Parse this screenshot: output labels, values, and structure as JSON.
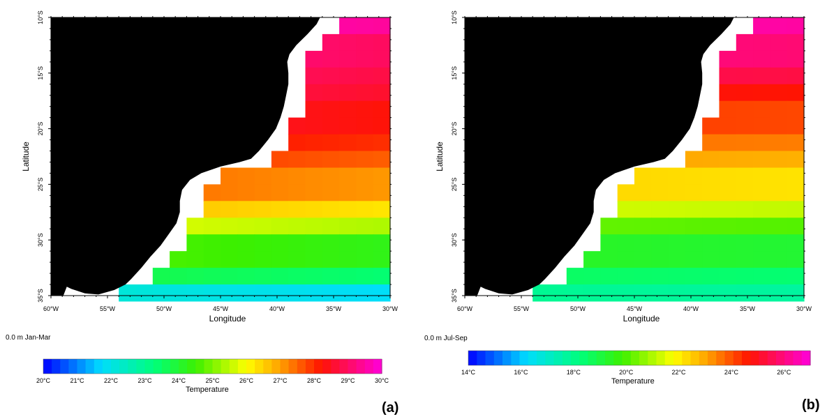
{
  "panels": [
    {
      "id": "a",
      "tag": "(a)",
      "depth_label": "0.0 m Jan-Mar",
      "xlabel": "Longitude",
      "ylabel": "Latitude",
      "lon_ticks": [
        "60°W",
        "55°W",
        "50°W",
        "45°W",
        "40°W",
        "35°W",
        "30°W"
      ],
      "lat_ticks": [
        "10°S",
        "15°S",
        "20°S",
        "25°S",
        "30°S",
        "35°S"
      ],
      "colorbar_title": "Temperature",
      "colorbar_range": [
        20,
        30
      ],
      "colorbar_ticks": [
        "20°C",
        "21°C",
        "22°C",
        "23°C",
        "24°C",
        "25°C",
        "26°C",
        "27°C",
        "28°C",
        "29°C",
        "30°C"
      ],
      "colorbar_tick_values": [
        20,
        21,
        22,
        23,
        24,
        25,
        26,
        27,
        28,
        29,
        30
      ]
    },
    {
      "id": "b",
      "tag": "(b)",
      "depth_label": "0.0 m Jul-Sep",
      "xlabel": "Longitude",
      "ylabel": "Latitude",
      "lon_ticks": [
        "60°W",
        "55°W",
        "50°W",
        "45°W",
        "40°W",
        "35°W",
        "30°W"
      ],
      "lat_ticks": [
        "10°S",
        "15°S",
        "20°S",
        "25°S",
        "30°S",
        "35°S"
      ],
      "colorbar_title": "Temperature",
      "colorbar_range": [
        14,
        27
      ],
      "colorbar_ticks": [
        "14°C",
        "16°C",
        "18°C",
        "20°C",
        "22°C",
        "24°C",
        "26°C"
      ],
      "colorbar_tick_values": [
        14,
        16,
        18,
        20,
        22,
        24,
        26
      ]
    }
  ],
  "chart_data": [
    {
      "type": "heatmap",
      "variable": "Temperature",
      "season": "Jan-Mar",
      "depth": "0.0 m",
      "x_range": [
        -60,
        -30
      ],
      "y_range": [
        -35,
        -10
      ],
      "colorscale_range": [
        20,
        30
      ],
      "colors": {
        "land": "#000000",
        "no_data": "#ffffff"
      },
      "lat_band_temps": [
        {
          "lat": -11,
          "temp": 29.7
        },
        {
          "lat": -13,
          "temp": 29.2
        },
        {
          "lat": -15,
          "temp": 29.0
        },
        {
          "lat": -17,
          "temp": 28.8
        },
        {
          "lat": -19,
          "temp": 28.5
        },
        {
          "lat": -21,
          "temp": 28.2
        },
        {
          "lat": -23,
          "temp": 27.8
        },
        {
          "lat": -25,
          "temp": 27.3
        },
        {
          "lat": -27,
          "temp": 26.5
        },
        {
          "lat": -29,
          "temp": 25.6
        },
        {
          "lat": -31,
          "temp": 24.5
        },
        {
          "lat": -33,
          "temp": 23.6
        },
        {
          "lat": -34.5,
          "temp": 22.0
        }
      ]
    },
    {
      "type": "heatmap",
      "variable": "Temperature",
      "season": "Jul-Sep",
      "depth": "0.0 m",
      "x_range": [
        -60,
        -30
      ],
      "y_range": [
        -35,
        -10
      ],
      "colorscale_range": [
        14,
        27
      ],
      "colors": {
        "land": "#000000",
        "no_data": "#ffffff"
      },
      "lat_band_temps": [
        {
          "lat": -11,
          "temp": 26.5
        },
        {
          "lat": -13,
          "temp": 26.0
        },
        {
          "lat": -15,
          "temp": 25.5
        },
        {
          "lat": -17,
          "temp": 24.8
        },
        {
          "lat": -19,
          "temp": 24.2
        },
        {
          "lat": -21,
          "temp": 23.6
        },
        {
          "lat": -23,
          "temp": 23.0
        },
        {
          "lat": -25,
          "temp": 22.3
        },
        {
          "lat": -27,
          "temp": 21.3
        },
        {
          "lat": -29,
          "temp": 20.2
        },
        {
          "lat": -31,
          "temp": 19.3
        },
        {
          "lat": -33,
          "temp": 18.5
        },
        {
          "lat": -34.5,
          "temp": 17.8
        }
      ]
    }
  ]
}
